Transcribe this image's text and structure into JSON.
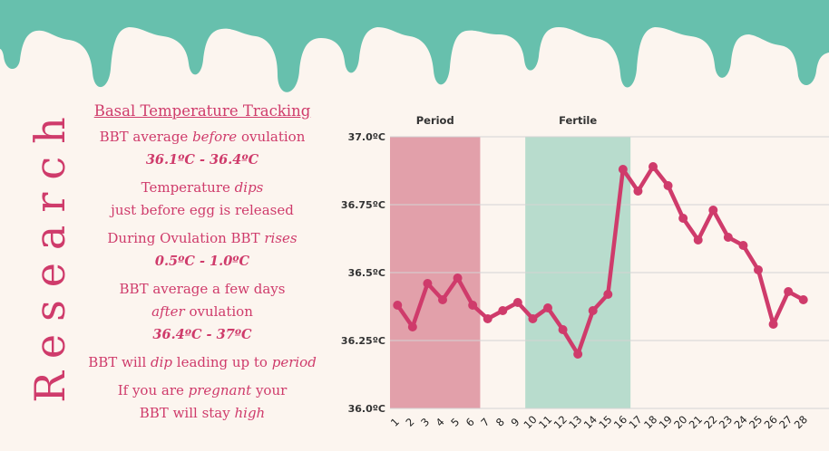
{
  "colors": {
    "drip": "#67c0ad",
    "accent": "#cf3b6b",
    "background": "#fcf5ef",
    "period_band": "#e2a0aa",
    "fertile_band": "#b8dccd"
  },
  "side_title": "Research",
  "notes": {
    "heading": "Basal Temperature Tracking",
    "n1_a": "BBT average ",
    "n1_em": "before",
    "n1_b": " ovulation",
    "n1_range": "36.1ºC - 36.4ºC",
    "n2_a": "Temperature ",
    "n2_em": "dips",
    "n2_line2": "just before egg is released",
    "n3_a": "During Ovulation BBT ",
    "n3_em": "rises",
    "n3_range": "0.5ºC - 1.0ºC",
    "n4_line1": "BBT average a few days",
    "n4_em": "after",
    "n4_b": " ovulation",
    "n4_range": "36.4ºC - 37ºC",
    "n5_a": "BBT will ",
    "n5_em": "dip",
    "n5_b": " leading up to ",
    "n5_em2": "period",
    "n6_a": "If you are ",
    "n6_em": "pregnant",
    "n6_b": " your",
    "n6_c": "BBT will stay ",
    "n6_em2": "high"
  },
  "chart_data": {
    "type": "line",
    "title": "",
    "xlabel": "",
    "ylabel": "",
    "x": [
      1,
      2,
      3,
      4,
      5,
      6,
      7,
      8,
      9,
      10,
      11,
      12,
      13,
      14,
      15,
      16,
      17,
      18,
      19,
      20,
      21,
      22,
      23,
      24,
      25,
      26,
      27,
      28
    ],
    "series": [
      {
        "values": [
          36.38,
          36.3,
          36.46,
          36.4,
          36.48,
          36.38,
          36.33,
          36.36,
          36.39,
          36.33,
          36.37,
          36.29,
          36.2,
          36.36,
          36.42,
          36.88,
          36.8,
          36.89,
          36.82,
          36.7,
          36.62,
          36.73,
          36.63,
          36.6,
          36.51,
          36.31,
          36.43,
          36.4
        ]
      }
    ],
    "ylim": [
      36.0,
      37.0
    ],
    "yticks": [
      36.0,
      36.25,
      36.5,
      36.75,
      37.0
    ],
    "ytick_labels": [
      "36.0ºC",
      "36.25ºC",
      "36.5ºC",
      "36.75ºC",
      "37.0ºC"
    ],
    "bands": [
      {
        "label": "Period",
        "from": 1,
        "to": 6
      },
      {
        "label": "Fertile",
        "from": 10,
        "to": 16
      }
    ],
    "grid": true
  }
}
